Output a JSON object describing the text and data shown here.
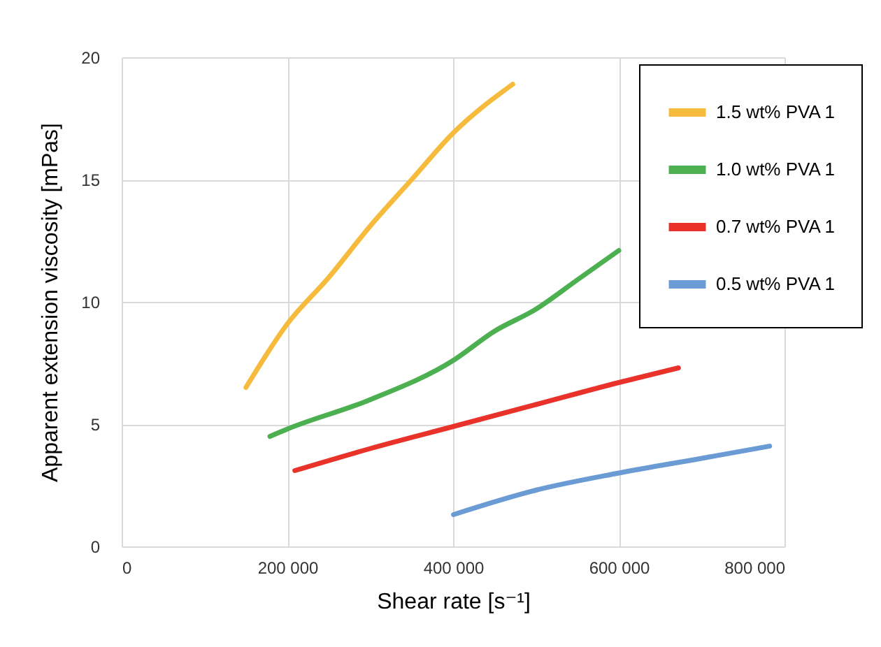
{
  "chart_data": {
    "type": "line",
    "xlabel": "Shear rate [s⁻¹]",
    "ylabel": "Apparent extension viscosity [mPas]",
    "xlim": [
      0,
      800000
    ],
    "xticks": [
      0,
      {
        "value": 200000,
        "label": "200 000"
      },
      {
        "value": 400000,
        "label": "400 000"
      },
      {
        "value": 600000,
        "label": "600 000"
      },
      {
        "value": 800000,
        "label": "800 000"
      }
    ],
    "ylim": [
      0,
      20
    ],
    "yticks": [
      0,
      5,
      10,
      15,
      20
    ],
    "grid": true,
    "legend": "top right",
    "marker": "none",
    "line_style": "solid",
    "series": [
      {
        "name": "1.5 wt% PVA 1",
        "color": "#f6bb3c",
        "x": [
          150000,
          200000,
          250000,
          300000,
          350000,
          400000,
          472000
        ],
        "values": [
          6.5,
          9.1,
          11.0,
          13.1,
          15.0,
          16.9,
          18.9
        ]
      },
      {
        "name": "1.0 wt% PVA 1",
        "color": "#4caf50",
        "x": [
          179000,
          200000,
          300000,
          400000,
          450000,
          500000,
          550000,
          600000
        ],
        "values": [
          4.5,
          4.8,
          6.0,
          7.6,
          8.8,
          9.7,
          10.9,
          12.1
        ]
      },
      {
        "name": "0.7 wt% PVA 1",
        "color": "#e8322a",
        "x": [
          209000,
          300000,
          400000,
          500000,
          600000,
          672000
        ],
        "values": [
          3.1,
          4.0,
          4.9,
          5.8,
          6.7,
          7.3
        ]
      },
      {
        "name": "0.5 wt% PVA 1",
        "color": "#6a9bd4",
        "x": [
          400500,
          500000,
          600000,
          700000,
          782000
        ],
        "values": [
          1.3,
          2.3,
          3.0,
          3.6,
          4.1
        ]
      }
    ]
  }
}
